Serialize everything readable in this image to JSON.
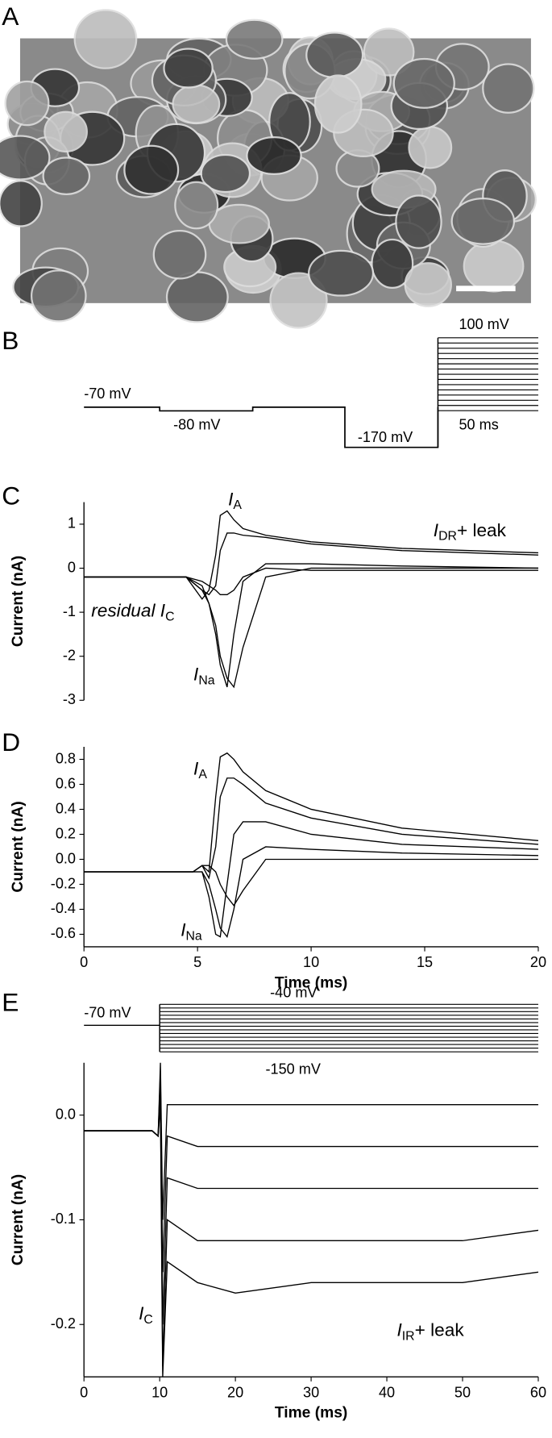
{
  "figure": {
    "panel_labels": [
      "A",
      "B",
      "C",
      "D",
      "E"
    ],
    "protocol_B": [
      "-70 mV",
      "-80 mV",
      "-170 mV",
      "100 mV",
      "50 ms"
    ],
    "protocol_E": [
      "-70 mV",
      "-40 mV",
      "-150 mV"
    ]
  },
  "chart_data": [
    {
      "type": "line",
      "ylabel": "Current (nA)",
      "xlim": [
        0,
        20
      ],
      "ylim": [
        -3,
        1.5
      ],
      "yticks": [
        -3,
        -2,
        -1,
        0,
        1
      ],
      "x": [
        0,
        4.5,
        5.2,
        5.5,
        5.8,
        6.0,
        6.3,
        6.6,
        7,
        8,
        10,
        14,
        20
      ],
      "annotations": [
        {
          "main": "I",
          "sub": "A"
        },
        {
          "main": "I",
          "sub": "DR",
          "tail": "+ leak"
        },
        {
          "main": "residual I",
          "sub": "C"
        },
        {
          "main": "I",
          "sub": "Na"
        }
      ],
      "series": [
        {
          "color": "#000000",
          "values": [
            -0.2,
            -0.2,
            -0.7,
            -0.5,
            0.3,
            1.2,
            1.3,
            1.1,
            0.9,
            0.75,
            0.6,
            0.45,
            0.35
          ]
        },
        {
          "color": "#000000",
          "values": [
            -0.2,
            -0.2,
            -0.5,
            -0.6,
            -0.4,
            0.4,
            0.8,
            0.8,
            0.75,
            0.7,
            0.55,
            0.4,
            0.3
          ]
        },
        {
          "color": "#000000",
          "values": [
            -0.2,
            -0.2,
            -0.5,
            -0.8,
            -1.5,
            -2.2,
            -2.7,
            -1.5,
            -0.3,
            0.1,
            0.1,
            0.05,
            0
          ]
        },
        {
          "color": "#000000",
          "values": [
            -0.2,
            -0.2,
            -0.4,
            -0.8,
            -1.3,
            -2.0,
            -2.5,
            -2.7,
            -1.8,
            -0.2,
            0,
            0,
            0
          ]
        },
        {
          "color": "#000000",
          "values": [
            -0.2,
            -0.2,
            -0.3,
            -0.4,
            -0.5,
            -0.6,
            -0.6,
            -0.5,
            -0.2,
            0,
            -0.05,
            -0.05,
            -0.05
          ]
        }
      ]
    },
    {
      "type": "line",
      "ylabel": "Current (nA)",
      "xlabel": "Time (ms)",
      "xlim": [
        0,
        20
      ],
      "ylim": [
        -0.7,
        0.9
      ],
      "xticks": [
        0,
        5,
        10,
        15,
        20
      ],
      "yticks": [
        -0.6,
        -0.4,
        -0.2,
        {
          "value": 0,
          "label": "0.0"
        },
        0.2,
        0.4,
        0.6,
        0.8
      ],
      "x": [
        0,
        4.8,
        5.2,
        5.5,
        5.8,
        6.0,
        6.3,
        6.6,
        7,
        8,
        10,
        14,
        20
      ],
      "annotations": [
        {
          "main": "I",
          "sub": "A"
        },
        {
          "main": "I",
          "sub": "Na"
        }
      ],
      "series": [
        {
          "color": "#000000",
          "values": [
            -0.1,
            -0.1,
            -0.05,
            -0.1,
            0.5,
            0.82,
            0.85,
            0.8,
            0.7,
            0.55,
            0.4,
            0.25,
            0.15
          ]
        },
        {
          "color": "#000000",
          "values": [
            -0.1,
            -0.1,
            -0.05,
            -0.15,
            0.1,
            0.5,
            0.65,
            0.65,
            0.6,
            0.45,
            0.33,
            0.2,
            0.12
          ]
        },
        {
          "color": "#000000",
          "values": [
            -0.1,
            -0.1,
            -0.1,
            -0.3,
            -0.6,
            -0.62,
            -0.2,
            0.2,
            0.3,
            0.3,
            0.2,
            0.12,
            0.08
          ]
        },
        {
          "color": "#000000",
          "values": [
            -0.1,
            -0.1,
            -0.1,
            -0.2,
            -0.4,
            -0.55,
            -0.62,
            -0.4,
            0,
            0.1,
            0.08,
            0.05,
            0.03
          ]
        },
        {
          "color": "#000000",
          "values": [
            -0.1,
            -0.1,
            -0.05,
            -0.05,
            -0.1,
            -0.2,
            -0.3,
            -0.37,
            -0.25,
            0,
            0,
            0,
            0
          ]
        }
      ]
    },
    {
      "type": "line",
      "ylabel": "Current (nA)",
      "xlabel": "Time (ms)",
      "xlim": [
        0,
        60
      ],
      "ylim": [
        -0.25,
        0.05
      ],
      "xticks": [
        0,
        10,
        20,
        30,
        40,
        50,
        60
      ],
      "yticks": [
        -0.2,
        -0.1,
        {
          "value": 0,
          "label": "0.0"
        }
      ],
      "x": [
        0,
        9,
        9.8,
        10.1,
        10.4,
        11,
        15,
        20,
        30,
        40,
        50,
        60
      ],
      "annotations": [
        {
          "main": "I",
          "sub": "C"
        },
        {
          "main": "I",
          "sub": "IR",
          "tail": "+ leak"
        }
      ],
      "series": [
        {
          "color": "#000000",
          "values": [
            -0.015,
            -0.015,
            -0.02,
            0.05,
            -0.1,
            0.01,
            0.01,
            0.01,
            0.01,
            0.01,
            0.01,
            0.01
          ]
        },
        {
          "color": "#000000",
          "values": [
            -0.015,
            -0.015,
            -0.02,
            0.04,
            -0.15,
            -0.02,
            -0.03,
            -0.03,
            -0.03,
            -0.03,
            -0.03,
            -0.03
          ]
        },
        {
          "color": "#000000",
          "values": [
            -0.015,
            -0.015,
            -0.02,
            0.03,
            -0.2,
            -0.06,
            -0.07,
            -0.07,
            -0.07,
            -0.07,
            -0.07,
            -0.07
          ]
        },
        {
          "color": "#000000",
          "values": [
            -0.015,
            -0.015,
            -0.02,
            0.02,
            -0.24,
            -0.1,
            -0.12,
            -0.12,
            -0.12,
            -0.12,
            -0.12,
            -0.11
          ]
        },
        {
          "color": "#000000",
          "values": [
            -0.015,
            -0.015,
            -0.02,
            0.01,
            -0.25,
            -0.14,
            -0.16,
            -0.17,
            -0.16,
            -0.16,
            -0.16,
            -0.15
          ]
        }
      ]
    }
  ]
}
